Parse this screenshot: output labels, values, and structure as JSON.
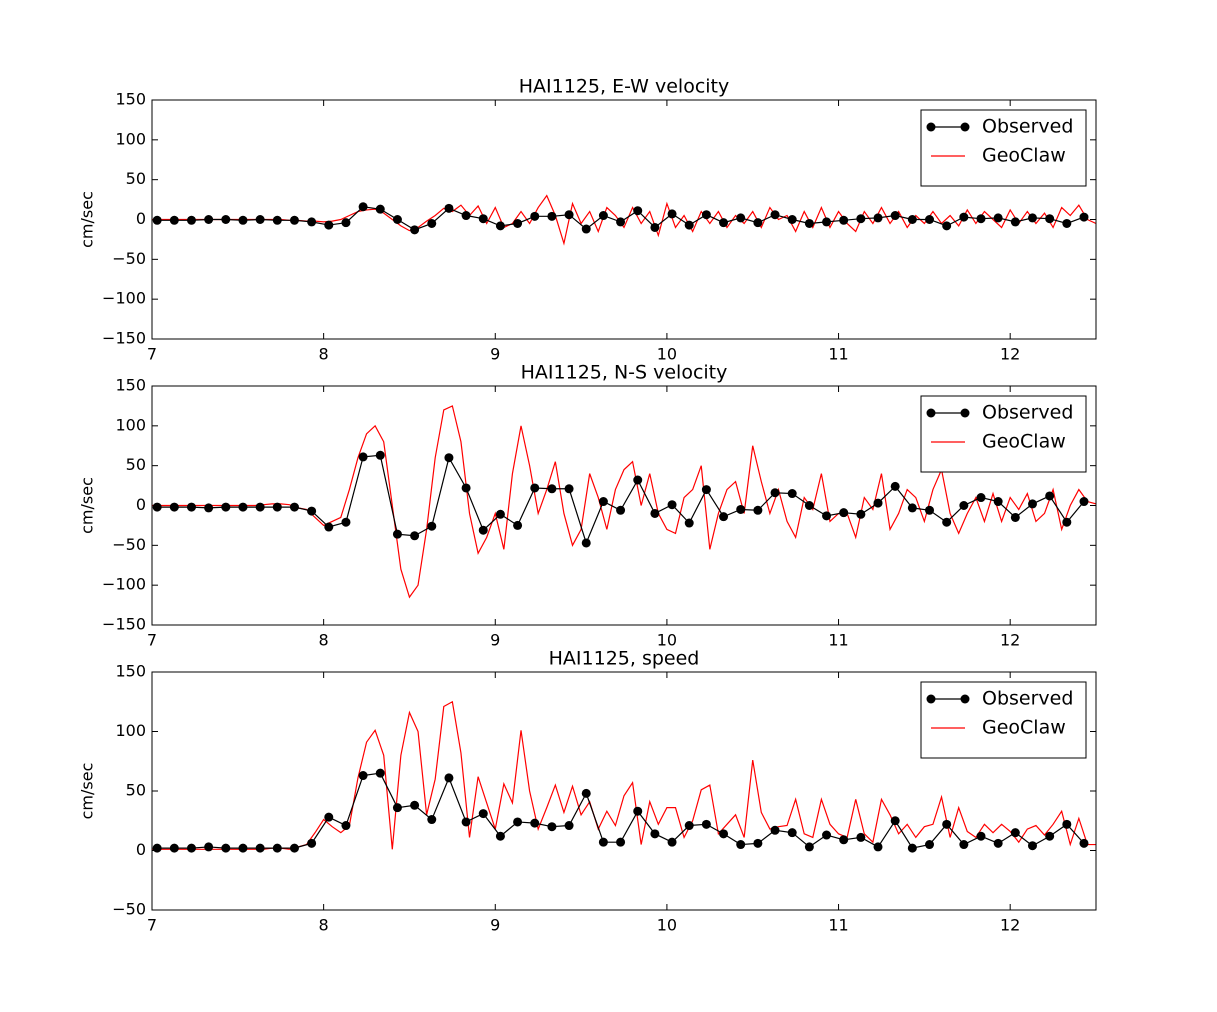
{
  "chart_data": [
    {
      "type": "line",
      "title": "HAI1125, E-W velocity",
      "y_label": "cm/sec",
      "legend": "upper right",
      "xlim": [
        7,
        12.5
      ],
      "xticks": [
        7,
        8,
        9,
        10,
        11,
        12
      ],
      "ylim": [
        -150,
        150
      ],
      "yticks": [
        {
          "value": -150,
          "label": "−150"
        },
        {
          "value": -100,
          "label": "−100"
        },
        {
          "value": -50,
          "label": "−50"
        },
        0,
        50,
        100,
        150
      ],
      "series": [
        {
          "name": "Observed",
          "color": "#000000",
          "marker": "o",
          "x": [
            7.03,
            7.13,
            7.23,
            7.33,
            7.43,
            7.53,
            7.63,
            7.73,
            7.83,
            7.93,
            8.03,
            8.13,
            8.23,
            8.33,
            8.43,
            8.53,
            8.63,
            8.73,
            8.83,
            8.93,
            9.03,
            9.13,
            9.23,
            9.33,
            9.43,
            9.53,
            9.63,
            9.73,
            9.83,
            9.93,
            10.03,
            10.13,
            10.23,
            10.33,
            10.43,
            10.53,
            10.63,
            10.73,
            10.83,
            10.93,
            11.03,
            11.13,
            11.23,
            11.33,
            11.43,
            11.53,
            11.63,
            11.73,
            11.83,
            11.93,
            12.03,
            12.13,
            12.23,
            12.33,
            12.43
          ],
          "values": [
            -1,
            -1,
            -1,
            0,
            0,
            -1,
            0,
            -1,
            -1,
            -3,
            -7,
            -4,
            16,
            13,
            0,
            -13,
            -5,
            14,
            5,
            1,
            -8,
            -5,
            4,
            4,
            6,
            -12,
            5,
            -3,
            11,
            -10,
            7,
            -7,
            6,
            -4,
            2,
            -4,
            6,
            0,
            -5,
            -3,
            -1,
            1,
            2,
            5,
            0,
            0,
            -8,
            3,
            1,
            2,
            -3,
            2,
            1,
            -5,
            3
          ]
        },
        {
          "name": "GeoClaw",
          "color": "#ff0000",
          "x": [
            7,
            7.05,
            7.1,
            7.15,
            7.2,
            7.25,
            7.3,
            7.35,
            7.4,
            7.45,
            7.5,
            7.55,
            7.6,
            7.65,
            7.7,
            7.75,
            7.8,
            7.85,
            7.9,
            7.95,
            8,
            8.05,
            8.1,
            8.15,
            8.2,
            8.25,
            8.3,
            8.35,
            8.4,
            8.45,
            8.5,
            8.55,
            8.6,
            8.65,
            8.7,
            8.75,
            8.8,
            8.85,
            8.9,
            8.95,
            9,
            9.05,
            9.1,
            9.15,
            9.2,
            9.25,
            9.3,
            9.35,
            9.4,
            9.45,
            9.5,
            9.55,
            9.6,
            9.65,
            9.7,
            9.75,
            9.8,
            9.85,
            9.9,
            9.95,
            10,
            10.05,
            10.1,
            10.15,
            10.2,
            10.25,
            10.3,
            10.35,
            10.4,
            10.45,
            10.5,
            10.55,
            10.6,
            10.65,
            10.7,
            10.75,
            10.8,
            10.85,
            10.9,
            10.95,
            11,
            11.05,
            11.1,
            11.15,
            11.2,
            11.25,
            11.3,
            11.35,
            11.4,
            11.45,
            11.5,
            11.55,
            11.6,
            11.65,
            11.7,
            11.75,
            11.8,
            11.85,
            11.9,
            11.95,
            12,
            12.05,
            12.1,
            12.15,
            12.2,
            12.25,
            12.3,
            12.35,
            12.4,
            12.45,
            12.5
          ],
          "values": [
            0,
            0,
            0,
            0,
            0,
            0,
            0,
            0,
            0,
            0,
            0,
            0,
            0,
            0,
            0,
            0,
            -1,
            -1,
            -2,
            -2,
            -3,
            -2,
            0,
            5,
            10,
            12,
            13,
            8,
            0,
            -8,
            -14,
            -10,
            -2,
            5,
            14,
            10,
            18,
            5,
            17,
            -5,
            15,
            -10,
            -5,
            10,
            -5,
            15,
            30,
            5,
            -30,
            20,
            -5,
            10,
            -15,
            15,
            5,
            -10,
            15,
            -5,
            10,
            -20,
            20,
            -10,
            5,
            -15,
            10,
            -5,
            10,
            -10,
            5,
            -5,
            10,
            -10,
            15,
            0,
            5,
            -15,
            10,
            -10,
            15,
            -10,
            10,
            -5,
            -15,
            10,
            -5,
            15,
            -5,
            10,
            -10,
            5,
            -5,
            10,
            -5,
            5,
            -8,
            12,
            -5,
            10,
            0,
            -10,
            12,
            -5,
            10,
            -5,
            8,
            -10,
            15,
            5,
            18,
            0,
            -5
          ]
        }
      ]
    },
    {
      "type": "line",
      "title": "HAI1125, N-S velocity",
      "y_label": "cm/sec",
      "legend": "upper right",
      "xlim": [
        7,
        12.5
      ],
      "xticks": [
        7,
        8,
        9,
        10,
        11,
        12
      ],
      "ylim": [
        -150,
        150
      ],
      "yticks": [
        {
          "value": -150,
          "label": "−150"
        },
        {
          "value": -100,
          "label": "−100"
        },
        {
          "value": -50,
          "label": "−50"
        },
        0,
        50,
        100,
        150
      ],
      "series": [
        {
          "name": "Observed",
          "color": "#000000",
          "marker": "o",
          "x": [
            7.03,
            7.13,
            7.23,
            7.33,
            7.43,
            7.53,
            7.63,
            7.73,
            7.83,
            7.93,
            8.03,
            8.13,
            8.23,
            8.33,
            8.43,
            8.53,
            8.63,
            8.73,
            8.83,
            8.93,
            9.03,
            9.13,
            9.23,
            9.33,
            9.43,
            9.53,
            9.63,
            9.73,
            9.83,
            9.93,
            10.03,
            10.13,
            10.23,
            10.33,
            10.43,
            10.53,
            10.63,
            10.73,
            10.83,
            10.93,
            11.03,
            11.13,
            11.23,
            11.33,
            11.43,
            11.53,
            11.63,
            11.73,
            11.83,
            11.93,
            12.03,
            12.13,
            12.23,
            12.33,
            12.43
          ],
          "values": [
            -2,
            -2,
            -2,
            -3,
            -2,
            -2,
            -2,
            -2,
            -2,
            -7,
            -27,
            -21,
            61,
            63,
            -36,
            -38,
            -26,
            60,
            22,
            -31,
            -11,
            -25,
            22,
            21,
            21,
            -47,
            5,
            -6,
            32,
            -10,
            1,
            -22,
            20,
            -14,
            -5,
            -6,
            16,
            15,
            0,
            -13,
            -9,
            -11,
            3,
            24,
            -3,
            -6,
            -21,
            0,
            10,
            5,
            -15,
            2,
            12,
            -21,
            5
          ]
        },
        {
          "name": "GeoClaw",
          "color": "#ff0000",
          "x": [
            7,
            7.05,
            7.1,
            7.15,
            7.2,
            7.25,
            7.3,
            7.35,
            7.4,
            7.45,
            7.5,
            7.55,
            7.6,
            7.65,
            7.7,
            7.75,
            7.8,
            7.85,
            7.9,
            7.95,
            8,
            8.05,
            8.1,
            8.15,
            8.2,
            8.25,
            8.3,
            8.35,
            8.4,
            8.45,
            8.5,
            8.55,
            8.6,
            8.65,
            8.7,
            8.75,
            8.8,
            8.85,
            8.9,
            8.95,
            9,
            9.05,
            9.1,
            9.15,
            9.2,
            9.25,
            9.3,
            9.35,
            9.4,
            9.45,
            9.5,
            9.55,
            9.6,
            9.65,
            9.7,
            9.75,
            9.8,
            9.85,
            9.9,
            9.95,
            10,
            10.05,
            10.1,
            10.15,
            10.2,
            10.25,
            10.3,
            10.35,
            10.4,
            10.45,
            10.5,
            10.55,
            10.6,
            10.65,
            10.7,
            10.75,
            10.8,
            10.85,
            10.9,
            10.95,
            11,
            11.05,
            11.1,
            11.15,
            11.2,
            11.25,
            11.3,
            11.35,
            11.4,
            11.45,
            11.5,
            11.55,
            11.6,
            11.65,
            11.7,
            11.75,
            11.8,
            11.85,
            11.9,
            11.95,
            12,
            12.05,
            12.1,
            12.15,
            12.2,
            12.25,
            12.3,
            12.35,
            12.4,
            12.45,
            12.5
          ],
          "values": [
            0,
            0,
            0,
            0,
            0,
            0,
            0,
            0,
            0,
            0,
            0,
            0,
            0,
            1,
            2,
            2,
            1,
            -3,
            -5,
            -15,
            -25,
            -20,
            -15,
            20,
            60,
            90,
            100,
            80,
            0,
            -80,
            -115,
            -100,
            -30,
            60,
            120,
            125,
            80,
            -10,
            -60,
            -40,
            -10,
            -55,
            40,
            100,
            50,
            -10,
            20,
            55,
            -10,
            -50,
            -30,
            40,
            10,
            -30,
            20,
            45,
            55,
            0,
            40,
            -10,
            -30,
            -35,
            10,
            20,
            50,
            -55,
            -10,
            20,
            30,
            -10,
            75,
            30,
            -10,
            20,
            -20,
            -40,
            10,
            -5,
            40,
            -20,
            -10,
            -10,
            -40,
            10,
            -5,
            40,
            -30,
            -10,
            20,
            10,
            -20,
            20,
            45,
            -10,
            -35,
            -10,
            10,
            -20,
            15,
            -20,
            10,
            -5,
            15,
            -20,
            -10,
            20,
            -30,
            0,
            20,
            5,
            2
          ]
        }
      ]
    },
    {
      "type": "line",
      "title": "HAI1125, speed",
      "y_label": "cm/sec",
      "legend": "upper right",
      "xlim": [
        7,
        12.5
      ],
      "xticks": [
        7,
        8,
        9,
        10,
        11,
        12
      ],
      "ylim": [
        -50,
        150
      ],
      "yticks": [
        {
          "value": -50,
          "label": "−50"
        },
        0,
        50,
        100,
        150
      ],
      "series": [
        {
          "name": "Observed",
          "color": "#000000",
          "marker": "o",
          "x": [
            7.03,
            7.13,
            7.23,
            7.33,
            7.43,
            7.53,
            7.63,
            7.73,
            7.83,
            7.93,
            8.03,
            8.13,
            8.23,
            8.33,
            8.43,
            8.53,
            8.63,
            8.73,
            8.83,
            8.93,
            9.03,
            9.13,
            9.23,
            9.33,
            9.43,
            9.53,
            9.63,
            9.73,
            9.83,
            9.93,
            10.03,
            10.13,
            10.23,
            10.33,
            10.43,
            10.53,
            10.63,
            10.73,
            10.83,
            10.93,
            11.03,
            11.13,
            11.23,
            11.33,
            11.43,
            11.53,
            11.63,
            11.73,
            11.83,
            11.93,
            12.03,
            12.13,
            12.23,
            12.33,
            12.43
          ],
          "values": [
            2,
            2,
            2,
            3,
            2,
            2,
            2,
            2,
            2,
            6,
            28,
            21,
            63,
            65,
            36,
            38,
            26,
            61,
            24,
            31,
            12,
            24,
            23,
            20,
            21,
            48,
            7,
            7,
            33,
            14,
            7,
            21,
            22,
            14,
            5,
            6,
            17,
            15,
            3,
            13,
            9,
            11,
            3,
            25,
            2,
            5,
            22,
            5,
            12,
            6,
            15,
            4,
            12,
            22,
            6
          ]
        },
        {
          "name": "GeoClaw",
          "color": "#ff0000",
          "x": [
            7,
            7.05,
            7.1,
            7.15,
            7.2,
            7.25,
            7.3,
            7.35,
            7.4,
            7.45,
            7.5,
            7.55,
            7.6,
            7.65,
            7.7,
            7.75,
            7.8,
            7.85,
            7.9,
            7.95,
            8,
            8.05,
            8.1,
            8.15,
            8.2,
            8.25,
            8.3,
            8.35,
            8.4,
            8.45,
            8.5,
            8.55,
            8.6,
            8.65,
            8.7,
            8.75,
            8.8,
            8.85,
            8.9,
            8.95,
            9,
            9.05,
            9.1,
            9.15,
            9.2,
            9.25,
            9.3,
            9.35,
            9.4,
            9.45,
            9.5,
            9.55,
            9.6,
            9.65,
            9.7,
            9.75,
            9.8,
            9.85,
            9.9,
            9.95,
            10,
            10.05,
            10.1,
            10.15,
            10.2,
            10.25,
            10.3,
            10.35,
            10.4,
            10.45,
            10.5,
            10.55,
            10.6,
            10.65,
            10.7,
            10.75,
            10.8,
            10.85,
            10.9,
            10.95,
            11,
            11.05,
            11.1,
            11.15,
            11.2,
            11.25,
            11.3,
            11.35,
            11.4,
            11.45,
            11.5,
            11.55,
            11.6,
            11.65,
            11.7,
            11.75,
            11.8,
            11.85,
            11.9,
            11.95,
            12,
            12.05,
            12.1,
            12.15,
            12.2,
            12.25,
            12.3,
            12.35,
            12.4,
            12.45,
            12.5
          ],
          "values": [
            1,
            1,
            1,
            1,
            1,
            1,
            1,
            1,
            1,
            1,
            1,
            1,
            1,
            1,
            2,
            2,
            1,
            3,
            5,
            15,
            26,
            20,
            15,
            21,
            61,
            91,
            101,
            80,
            1,
            80,
            116,
            100,
            30,
            60,
            121,
            125,
            82,
            11,
            62,
            40,
            18,
            56,
            40,
            101,
            50,
            18,
            36,
            55,
            32,
            54,
            30,
            41,
            18,
            33,
            21,
            46,
            57,
            5,
            41,
            22,
            36,
            36,
            11,
            25,
            51,
            55,
            14,
            22,
            30,
            11,
            76,
            32,
            18,
            20,
            21,
            43,
            14,
            11,
            43,
            22,
            14,
            11,
            43,
            14,
            7,
            43,
            30,
            14,
            22,
            11,
            20,
            22,
            45,
            11,
            36,
            16,
            11,
            22,
            15,
            22,
            16,
            7,
            18,
            21,
            13,
            22,
            33,
            5,
            27,
            5,
            5
          ]
        }
      ]
    }
  ]
}
